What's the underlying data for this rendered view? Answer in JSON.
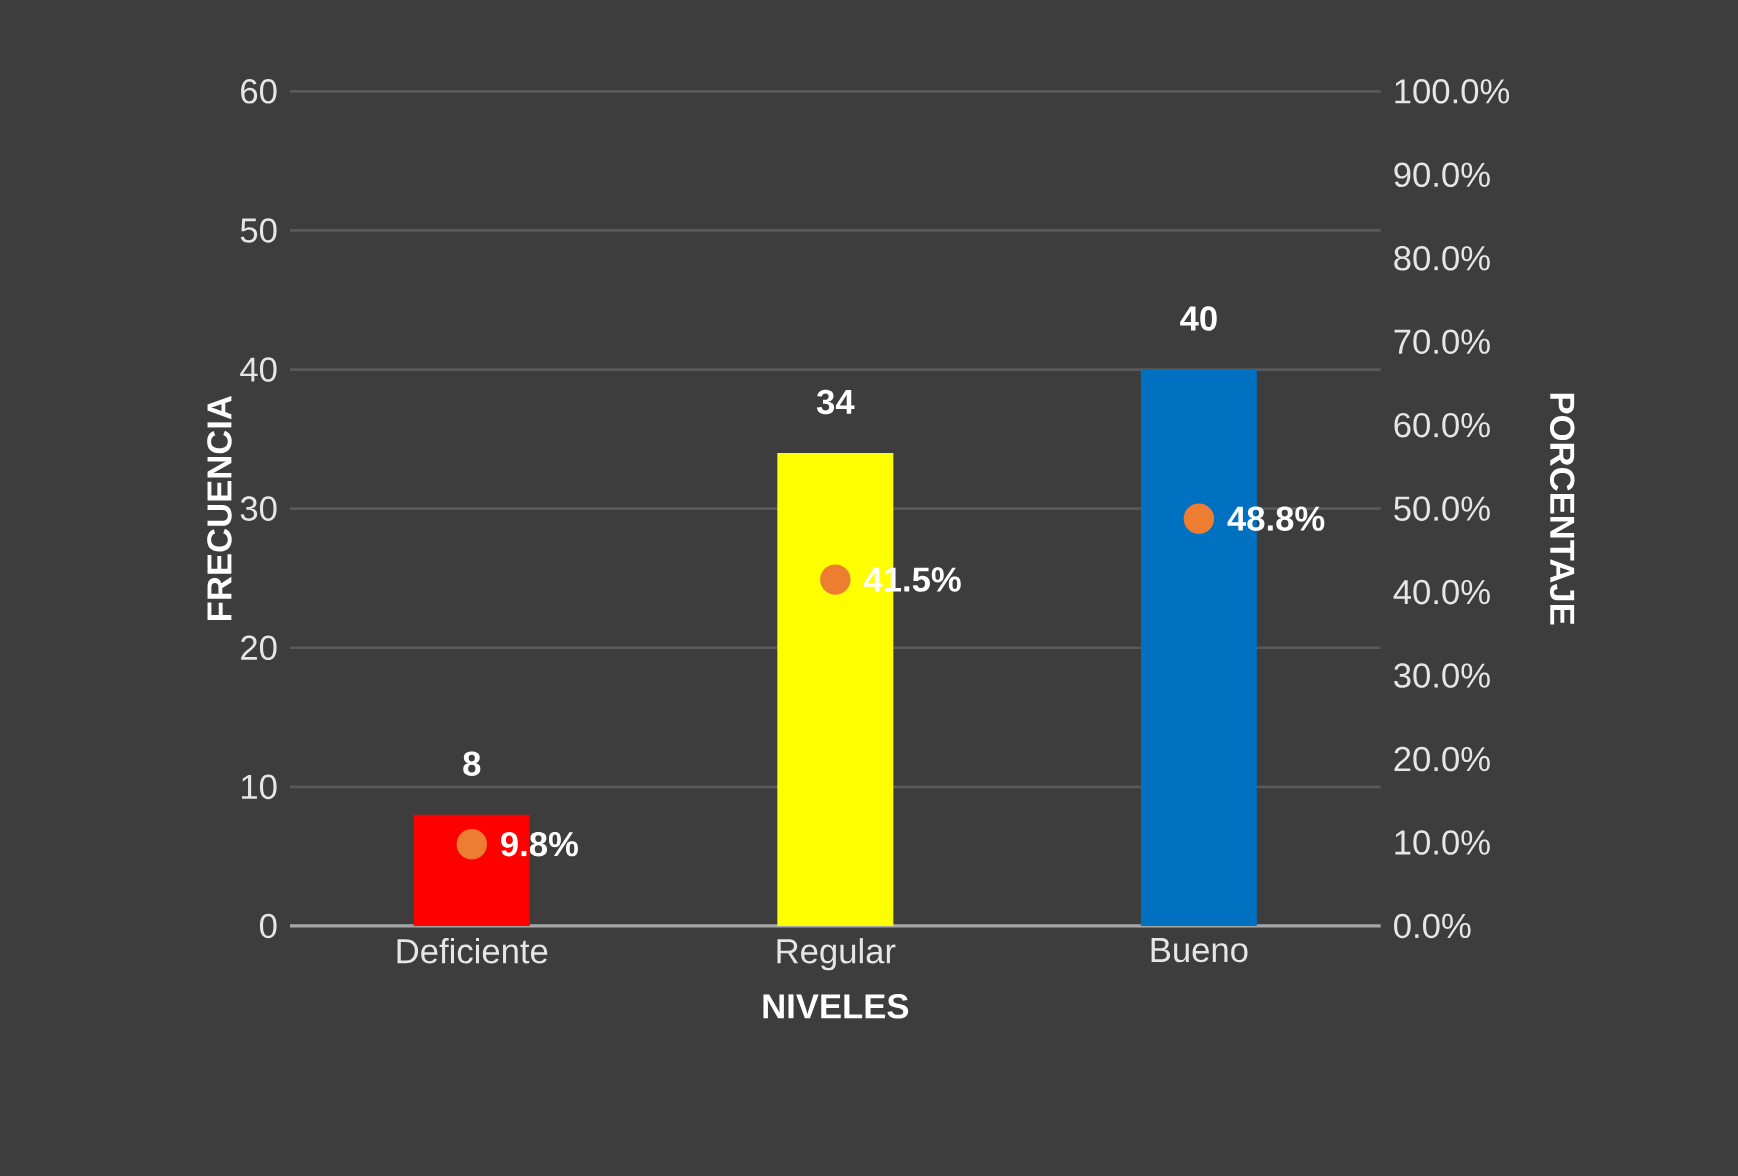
{
  "chart_data": {
    "type": "bar",
    "xlabel": "NIVELES",
    "ylabel": "FRECUENCIA",
    "y2label": "PORCENTAJE",
    "categories": [
      "Deficiente",
      "Regular",
      "Bueno"
    ],
    "series": [
      {
        "colors": [
          "#ff0000",
          "#ffff00",
          "#0070c0"
        ],
        "values": [
          8,
          34,
          40
        ],
        "value_labels": [
          "8",
          "34",
          "40"
        ]
      },
      {
        "type": "scatter",
        "axis": "y2",
        "color": "#ed7d31",
        "values": [
          9.8,
          41.5,
          48.8
        ],
        "value_labels": [
          "9.8%",
          "41.5%",
          "48.8%"
        ]
      }
    ],
    "ylim": [
      0,
      60
    ],
    "yticks": [
      0,
      10,
      20,
      30,
      40,
      50,
      60
    ],
    "y2lim": [
      0,
      100
    ],
    "y2ticks": [
      {
        "value": 0,
        "label": "0.0%"
      },
      {
        "value": 10,
        "label": "10.0%"
      },
      {
        "value": 20,
        "label": "20.0%"
      },
      {
        "value": 30,
        "label": "30.0%"
      },
      {
        "value": 40,
        "label": "40.0%"
      },
      {
        "value": 50,
        "label": "50.0%"
      },
      {
        "value": 60,
        "label": "60.0%"
      },
      {
        "value": 70,
        "label": "70.0%"
      },
      {
        "value": 80,
        "label": "80.0%"
      },
      {
        "value": 90,
        "label": "90.0%"
      },
      {
        "value": 100,
        "label": "100.0%"
      }
    ],
    "grid": "y",
    "marker": "circle"
  }
}
